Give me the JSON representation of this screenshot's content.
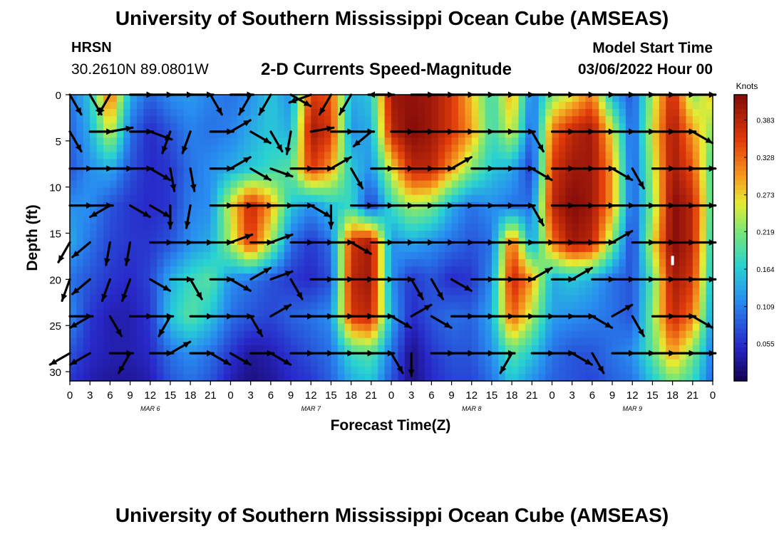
{
  "header": {
    "title": "University of Southern Mississippi Ocean Cube (AMSEAS)",
    "station": "HRSN",
    "coordinates": "30.2610N  89.0801W",
    "product": "2-D Currents Speed-Magnitude",
    "model_start_label": "Model Start Time",
    "model_start_value": "03/06/2022 Hour 00"
  },
  "footer": {
    "title": "University of Southern Mississippi Ocean Cube (AMSEAS)"
  },
  "chart_data": {
    "type": "heatmap",
    "xlabel": "Forecast Time(Z)",
    "ylabel": "Depth (ft)",
    "x_tick_labels": [
      "0",
      "3",
      "6",
      "9",
      "12",
      "15",
      "18",
      "21",
      "0",
      "3",
      "6",
      "9",
      "12",
      "15",
      "18",
      "21",
      "0",
      "3",
      "6",
      "9",
      "12",
      "15",
      "18",
      "21",
      "0",
      "3",
      "6",
      "9",
      "12",
      "15",
      "18",
      "21",
      "0"
    ],
    "date_labels": [
      "MAR 6",
      "MAR 7",
      "MAR 8",
      "MAR 9"
    ],
    "xlim": [
      0,
      96
    ],
    "y_ticks": [
      0,
      5,
      10,
      15,
      20,
      25,
      30
    ],
    "ylim": [
      0,
      31
    ],
    "y_inverted": true,
    "colorbar": {
      "label": "Knots",
      "ticks": [
        "0.383",
        "0.328",
        "0.273",
        "0.219",
        "0.164",
        "0.109",
        "0.055"
      ],
      "range": [
        0,
        0.42
      ]
    },
    "speed_grid": {
      "hours": [
        0,
        3,
        6,
        9,
        12,
        15,
        18,
        21,
        24,
        27,
        30,
        33,
        36,
        39,
        42,
        45,
        48,
        51,
        54,
        57,
        60,
        63,
        66,
        69,
        72,
        75,
        78,
        81,
        84,
        87,
        90,
        93,
        96
      ],
      "depths_ft": [
        0,
        4,
        8,
        12,
        16,
        20,
        24,
        28,
        31
      ],
      "rows": [
        [
          0.1,
          0.16,
          0.34,
          0.14,
          0.09,
          0.12,
          0.13,
          0.11,
          0.1,
          0.12,
          0.16,
          0.12,
          0.36,
          0.34,
          0.14,
          0.16,
          0.4,
          0.41,
          0.4,
          0.36,
          0.28,
          0.18,
          0.3,
          0.1,
          0.22,
          0.26,
          0.32,
          0.14,
          0.08,
          0.24,
          0.38,
          0.22,
          0.28
        ],
        [
          0.09,
          0.14,
          0.26,
          0.1,
          0.05,
          0.08,
          0.11,
          0.1,
          0.11,
          0.14,
          0.16,
          0.14,
          0.4,
          0.36,
          0.12,
          0.14,
          0.38,
          0.42,
          0.4,
          0.36,
          0.3,
          0.18,
          0.26,
          0.08,
          0.32,
          0.38,
          0.4,
          0.26,
          0.08,
          0.26,
          0.4,
          0.3,
          0.22
        ],
        [
          0.08,
          0.12,
          0.14,
          0.08,
          0.05,
          0.06,
          0.1,
          0.12,
          0.14,
          0.16,
          0.18,
          0.2,
          0.36,
          0.3,
          0.16,
          0.12,
          0.26,
          0.38,
          0.38,
          0.3,
          0.22,
          0.16,
          0.14,
          0.06,
          0.36,
          0.4,
          0.4,
          0.3,
          0.08,
          0.24,
          0.4,
          0.34,
          0.18
        ],
        [
          0.12,
          0.12,
          0.08,
          0.06,
          0.05,
          0.06,
          0.11,
          0.12,
          0.26,
          0.38,
          0.3,
          0.16,
          0.12,
          0.16,
          0.18,
          0.06,
          0.18,
          0.24,
          0.22,
          0.14,
          0.1,
          0.12,
          0.1,
          0.1,
          0.38,
          0.42,
          0.4,
          0.3,
          0.08,
          0.22,
          0.42,
          0.38,
          0.18
        ],
        [
          0.14,
          0.1,
          0.07,
          0.06,
          0.06,
          0.08,
          0.12,
          0.14,
          0.24,
          0.36,
          0.24,
          0.1,
          0.06,
          0.1,
          0.36,
          0.4,
          0.12,
          0.14,
          0.12,
          0.1,
          0.08,
          0.1,
          0.34,
          0.12,
          0.32,
          0.4,
          0.38,
          0.22,
          0.06,
          0.26,
          0.42,
          0.38,
          0.16
        ],
        [
          0.1,
          0.08,
          0.06,
          0.05,
          0.07,
          0.14,
          0.18,
          0.2,
          0.12,
          0.1,
          0.08,
          0.06,
          0.05,
          0.08,
          0.38,
          0.4,
          0.12,
          0.06,
          0.08,
          0.05,
          0.06,
          0.12,
          0.38,
          0.3,
          0.14,
          0.16,
          0.14,
          0.1,
          0.08,
          0.2,
          0.4,
          0.36,
          0.14
        ],
        [
          0.12,
          0.06,
          0.04,
          0.04,
          0.06,
          0.16,
          0.2,
          0.16,
          0.1,
          0.08,
          0.07,
          0.09,
          0.1,
          0.12,
          0.36,
          0.38,
          0.14,
          0.05,
          0.08,
          0.1,
          0.09,
          0.14,
          0.34,
          0.24,
          0.13,
          0.12,
          0.11,
          0.1,
          0.08,
          0.22,
          0.38,
          0.32,
          0.12
        ],
        [
          0.08,
          0.05,
          0.04,
          0.04,
          0.05,
          0.1,
          0.12,
          0.1,
          0.06,
          0.03,
          0.04,
          0.06,
          0.08,
          0.1,
          0.18,
          0.2,
          0.1,
          0.02,
          0.06,
          0.08,
          0.08,
          0.12,
          0.2,
          0.16,
          0.1,
          0.08,
          0.08,
          0.1,
          0.12,
          0.2,
          0.3,
          0.22,
          0.1
        ],
        [
          0.06,
          0.04,
          0.03,
          0.03,
          0.04,
          0.08,
          0.1,
          0.08,
          0.04,
          0.02,
          0.03,
          0.05,
          0.06,
          0.09,
          0.14,
          0.16,
          0.08,
          0.02,
          0.05,
          0.07,
          0.07,
          0.1,
          0.16,
          0.12,
          0.09,
          0.08,
          0.07,
          0.09,
          0.1,
          0.16,
          0.22,
          0.18,
          0.09
        ]
      ]
    },
    "vectors": {
      "depths_ft": [
        0,
        4,
        8,
        12,
        16,
        20,
        24,
        28
      ],
      "start_hour": 0,
      "step_hours": 3,
      "angles_deg": [
        [
          300,
          300,
          240,
          0,
          0,
          0,
          0,
          300,
          0,
          240,
          240,
          330,
          200,
          240,
          240,
          0,
          180,
          0,
          0,
          0,
          0,
          0,
          0,
          0,
          0,
          0,
          0,
          0,
          0,
          0,
          0,
          0
        ],
        [
          300,
          0,
          10,
          0,
          340,
          250,
          250,
          0,
          30,
          330,
          300,
          260,
          10,
          0,
          0,
          220,
          0,
          0,
          0,
          0,
          0,
          0,
          0,
          300,
          0,
          0,
          0,
          0,
          0,
          0,
          0,
          330
        ],
        [
          0,
          0,
          0,
          0,
          330,
          280,
          280,
          0,
          30,
          330,
          340,
          0,
          0,
          30,
          300,
          0,
          0,
          0,
          0,
          30,
          0,
          0,
          0,
          330,
          0,
          0,
          0,
          330,
          300,
          0,
          0,
          0
        ],
        [
          0,
          0,
          210,
          330,
          330,
          270,
          260,
          0,
          0,
          0,
          0,
          0,
          330,
          270,
          0,
          0,
          0,
          0,
          0,
          0,
          0,
          0,
          0,
          300,
          0,
          0,
          0,
          0,
          0,
          0,
          0,
          0
        ],
        [
          240,
          220,
          260,
          260,
          0,
          0,
          0,
          0,
          20,
          0,
          20,
          0,
          0,
          0,
          330,
          0,
          0,
          0,
          0,
          0,
          0,
          0,
          0,
          0,
          0,
          0,
          0,
          30,
          0,
          0,
          0,
          0
        ],
        [
          250,
          220,
          250,
          250,
          330,
          0,
          300,
          0,
          330,
          30,
          20,
          300,
          0,
          0,
          0,
          0,
          0,
          300,
          300,
          330,
          0,
          0,
          0,
          30,
          0,
          30,
          0,
          0,
          0,
          0,
          0,
          0
        ],
        [
          0,
          210,
          300,
          0,
          0,
          240,
          0,
          0,
          0,
          300,
          30,
          0,
          0,
          0,
          0,
          0,
          330,
          30,
          330,
          0,
          0,
          0,
          0,
          0,
          0,
          0,
          330,
          30,
          300,
          0,
          0,
          330
        ],
        [
          210,
          210,
          0,
          240,
          0,
          30,
          0,
          330,
          330,
          0,
          330,
          0,
          0,
          0,
          0,
          0,
          300,
          270,
          0,
          0,
          0,
          0,
          240,
          0,
          0,
          330,
          300,
          0,
          0,
          0,
          0,
          0
        ]
      ]
    },
    "white_marker": {
      "hour": 90,
      "depth_ft": 18
    }
  }
}
